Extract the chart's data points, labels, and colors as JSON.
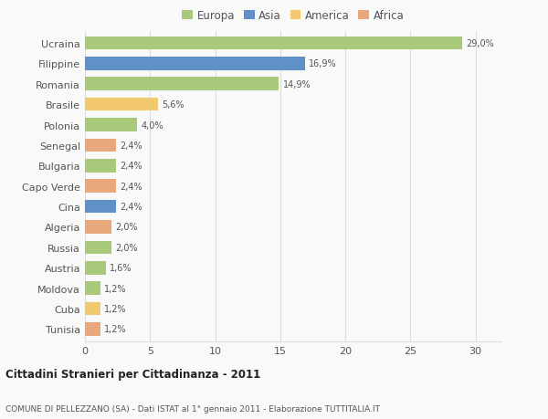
{
  "categories": [
    "Tunisia",
    "Cuba",
    "Moldova",
    "Austria",
    "Russia",
    "Algeria",
    "Cina",
    "Capo Verde",
    "Bulgaria",
    "Senegal",
    "Polonia",
    "Brasile",
    "Romania",
    "Filippine",
    "Ucraina"
  ],
  "values": [
    1.2,
    1.2,
    1.2,
    1.6,
    2.0,
    2.0,
    2.4,
    2.4,
    2.4,
    2.4,
    4.0,
    5.6,
    14.9,
    16.9,
    29.0
  ],
  "labels": [
    "1,2%",
    "1,2%",
    "1,2%",
    "1,6%",
    "2,0%",
    "2,0%",
    "2,4%",
    "2,4%",
    "2,4%",
    "2,4%",
    "4,0%",
    "5,6%",
    "14,9%",
    "16,9%",
    "29,0%"
  ],
  "colors": [
    "#e8a87c",
    "#f2c96e",
    "#a8c87a",
    "#a8c87a",
    "#a8c87a",
    "#e8a87c",
    "#6090c8",
    "#e8a87c",
    "#a8c87a",
    "#e8a87c",
    "#a8c87a",
    "#f2c96e",
    "#a8c87a",
    "#6090c8",
    "#a8c87a"
  ],
  "legend_labels": [
    "Europa",
    "Asia",
    "America",
    "Africa"
  ],
  "legend_colors": [
    "#a8c87a",
    "#6090c8",
    "#f2c96e",
    "#e8a87c"
  ],
  "title_bold": "Cittadini Stranieri per Cittadinanza - 2011",
  "subtitle": "COMUNE DI PELLEZZANO (SA) - Dati ISTAT al 1° gennaio 2011 - Elaborazione TUTTITALIA.IT",
  "xlim": [
    0,
    32
  ],
  "xticks": [
    0,
    5,
    10,
    15,
    20,
    25,
    30
  ],
  "bg_color": "#f9f9f9",
  "grid_color": "#dddddd"
}
